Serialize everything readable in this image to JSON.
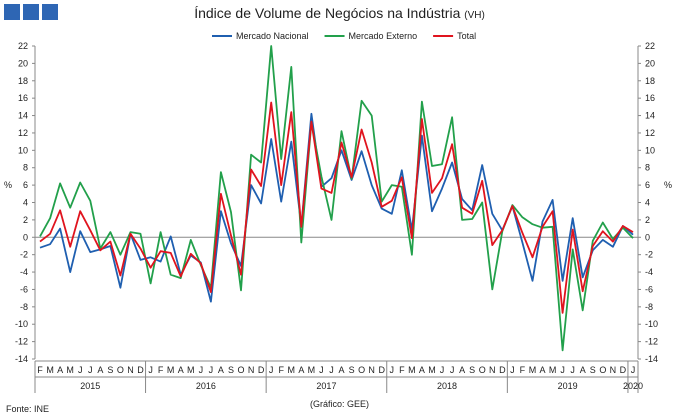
{
  "title": "Índice de Volume de Negócios na Indústria",
  "title_unit": "(VH)",
  "source": "Fonte: INE",
  "note": "(Gráfico: GEE)",
  "brand_color": "#2e66b4",
  "chart_data": {
    "type": "line",
    "ylabel": "%",
    "ylabel_right": "%",
    "ylim": [
      -14,
      22
    ],
    "yticks": [
      -14,
      -12,
      -10,
      -8,
      -6,
      -4,
      -2,
      0,
      2,
      4,
      6,
      8,
      10,
      12,
      14,
      16,
      18,
      20,
      22
    ],
    "grid": false,
    "legend_position": "top",
    "months": [
      "F",
      "M",
      "A",
      "M",
      "J",
      "J",
      "A",
      "S",
      "O",
      "N",
      "D",
      "J",
      "F",
      "M",
      "A",
      "M",
      "J",
      "J",
      "A",
      "S",
      "O",
      "N",
      "D",
      "J",
      "F",
      "M",
      "A",
      "M",
      "J",
      "J",
      "A",
      "S",
      "O",
      "N",
      "D",
      "J",
      "F",
      "M",
      "A",
      "M",
      "J",
      "J",
      "A",
      "S",
      "O",
      "N",
      "D",
      "J",
      "F",
      "M",
      "A",
      "M",
      "J",
      "J",
      "A",
      "S",
      "O",
      "N",
      "D",
      "J"
    ],
    "years": [
      {
        "label": "2015",
        "start": 0,
        "end": 10
      },
      {
        "label": "2016",
        "start": 11,
        "end": 22
      },
      {
        "label": "2017",
        "start": 23,
        "end": 34
      },
      {
        "label": "2018",
        "start": 35,
        "end": 46
      },
      {
        "label": "2019",
        "start": 47,
        "end": 58
      },
      {
        "label": "2020",
        "start": 59,
        "end": 59
      }
    ],
    "series": [
      {
        "name": "Mercado Nacional",
        "color": "#1f5fb0",
        "values": [
          -1.2,
          -0.8,
          1.0,
          -4.0,
          0.7,
          -1.7,
          -1.4,
          -1.0,
          -5.8,
          0.4,
          -2.6,
          -2.3,
          -2.8,
          0.1,
          -4.3,
          -2.1,
          -2.9,
          -7.4,
          3.0,
          -0.7,
          -3.3,
          6.0,
          3.9,
          11.3,
          4.1,
          11.0,
          1.3,
          14.2,
          5.8,
          6.8,
          10.0,
          6.6,
          9.9,
          6.0,
          3.3,
          2.7,
          7.7,
          0.8,
          11.7,
          3.0,
          5.6,
          8.6,
          4.4,
          3.1,
          8.3,
          2.7,
          0.8,
          3.6,
          -0.6,
          -5.0,
          1.8,
          4.3,
          -5.0,
          2.2,
          -4.6,
          -1.5,
          -0.3,
          -1.1,
          1.3,
          0.3
        ]
      },
      {
        "name": "Mercado Externo",
        "color": "#22a04b",
        "values": [
          0.1,
          2.2,
          6.2,
          3.4,
          6.3,
          4.2,
          -1.3,
          0.6,
          -2.0,
          0.6,
          0.4,
          -5.3,
          0.6,
          -4.3,
          -4.7,
          -0.3,
          -3.2,
          -5.8,
          7.5,
          2.9,
          -6.1,
          9.5,
          8.6,
          22.0,
          9.0,
          19.6,
          -0.6,
          13.2,
          7.0,
          2.0,
          12.2,
          6.7,
          15.7,
          14.0,
          4.1,
          6.0,
          5.8,
          -2.0,
          15.6,
          8.2,
          8.4,
          13.8,
          2.0,
          2.1,
          4.0,
          -6.0,
          0.7,
          3.7,
          2.3,
          1.5,
          1.1,
          1.2,
          -13.0,
          -1.4,
          -8.4,
          -0.4,
          1.7,
          -0.2,
          1.1,
          -0.1
        ]
      },
      {
        "name": "Total",
        "color": "#e0141e",
        "values": [
          -0.5,
          0.4,
          3.1,
          -1.1,
          3.0,
          0.8,
          -1.5,
          -0.5,
          -4.4,
          0.4,
          -1.3,
          -3.5,
          -1.6,
          -1.8,
          -4.5,
          -1.9,
          -3.0,
          -6.3,
          5.0,
          0.2,
          -4.3,
          7.8,
          5.9,
          15.5,
          6.0,
          14.4,
          1.2,
          13.3,
          5.6,
          5.1,
          10.9,
          6.9,
          12.4,
          8.6,
          3.5,
          4.2,
          6.9,
          -0.1,
          13.6,
          5.1,
          6.8,
          10.7,
          3.4,
          2.7,
          6.5,
          -0.9,
          0.8,
          3.6,
          0.5,
          -2.3,
          1.2,
          3.0,
          -8.7,
          0.9,
          -6.2,
          -1.0,
          0.7,
          -0.5,
          1.3,
          0.6
        ]
      }
    ]
  }
}
